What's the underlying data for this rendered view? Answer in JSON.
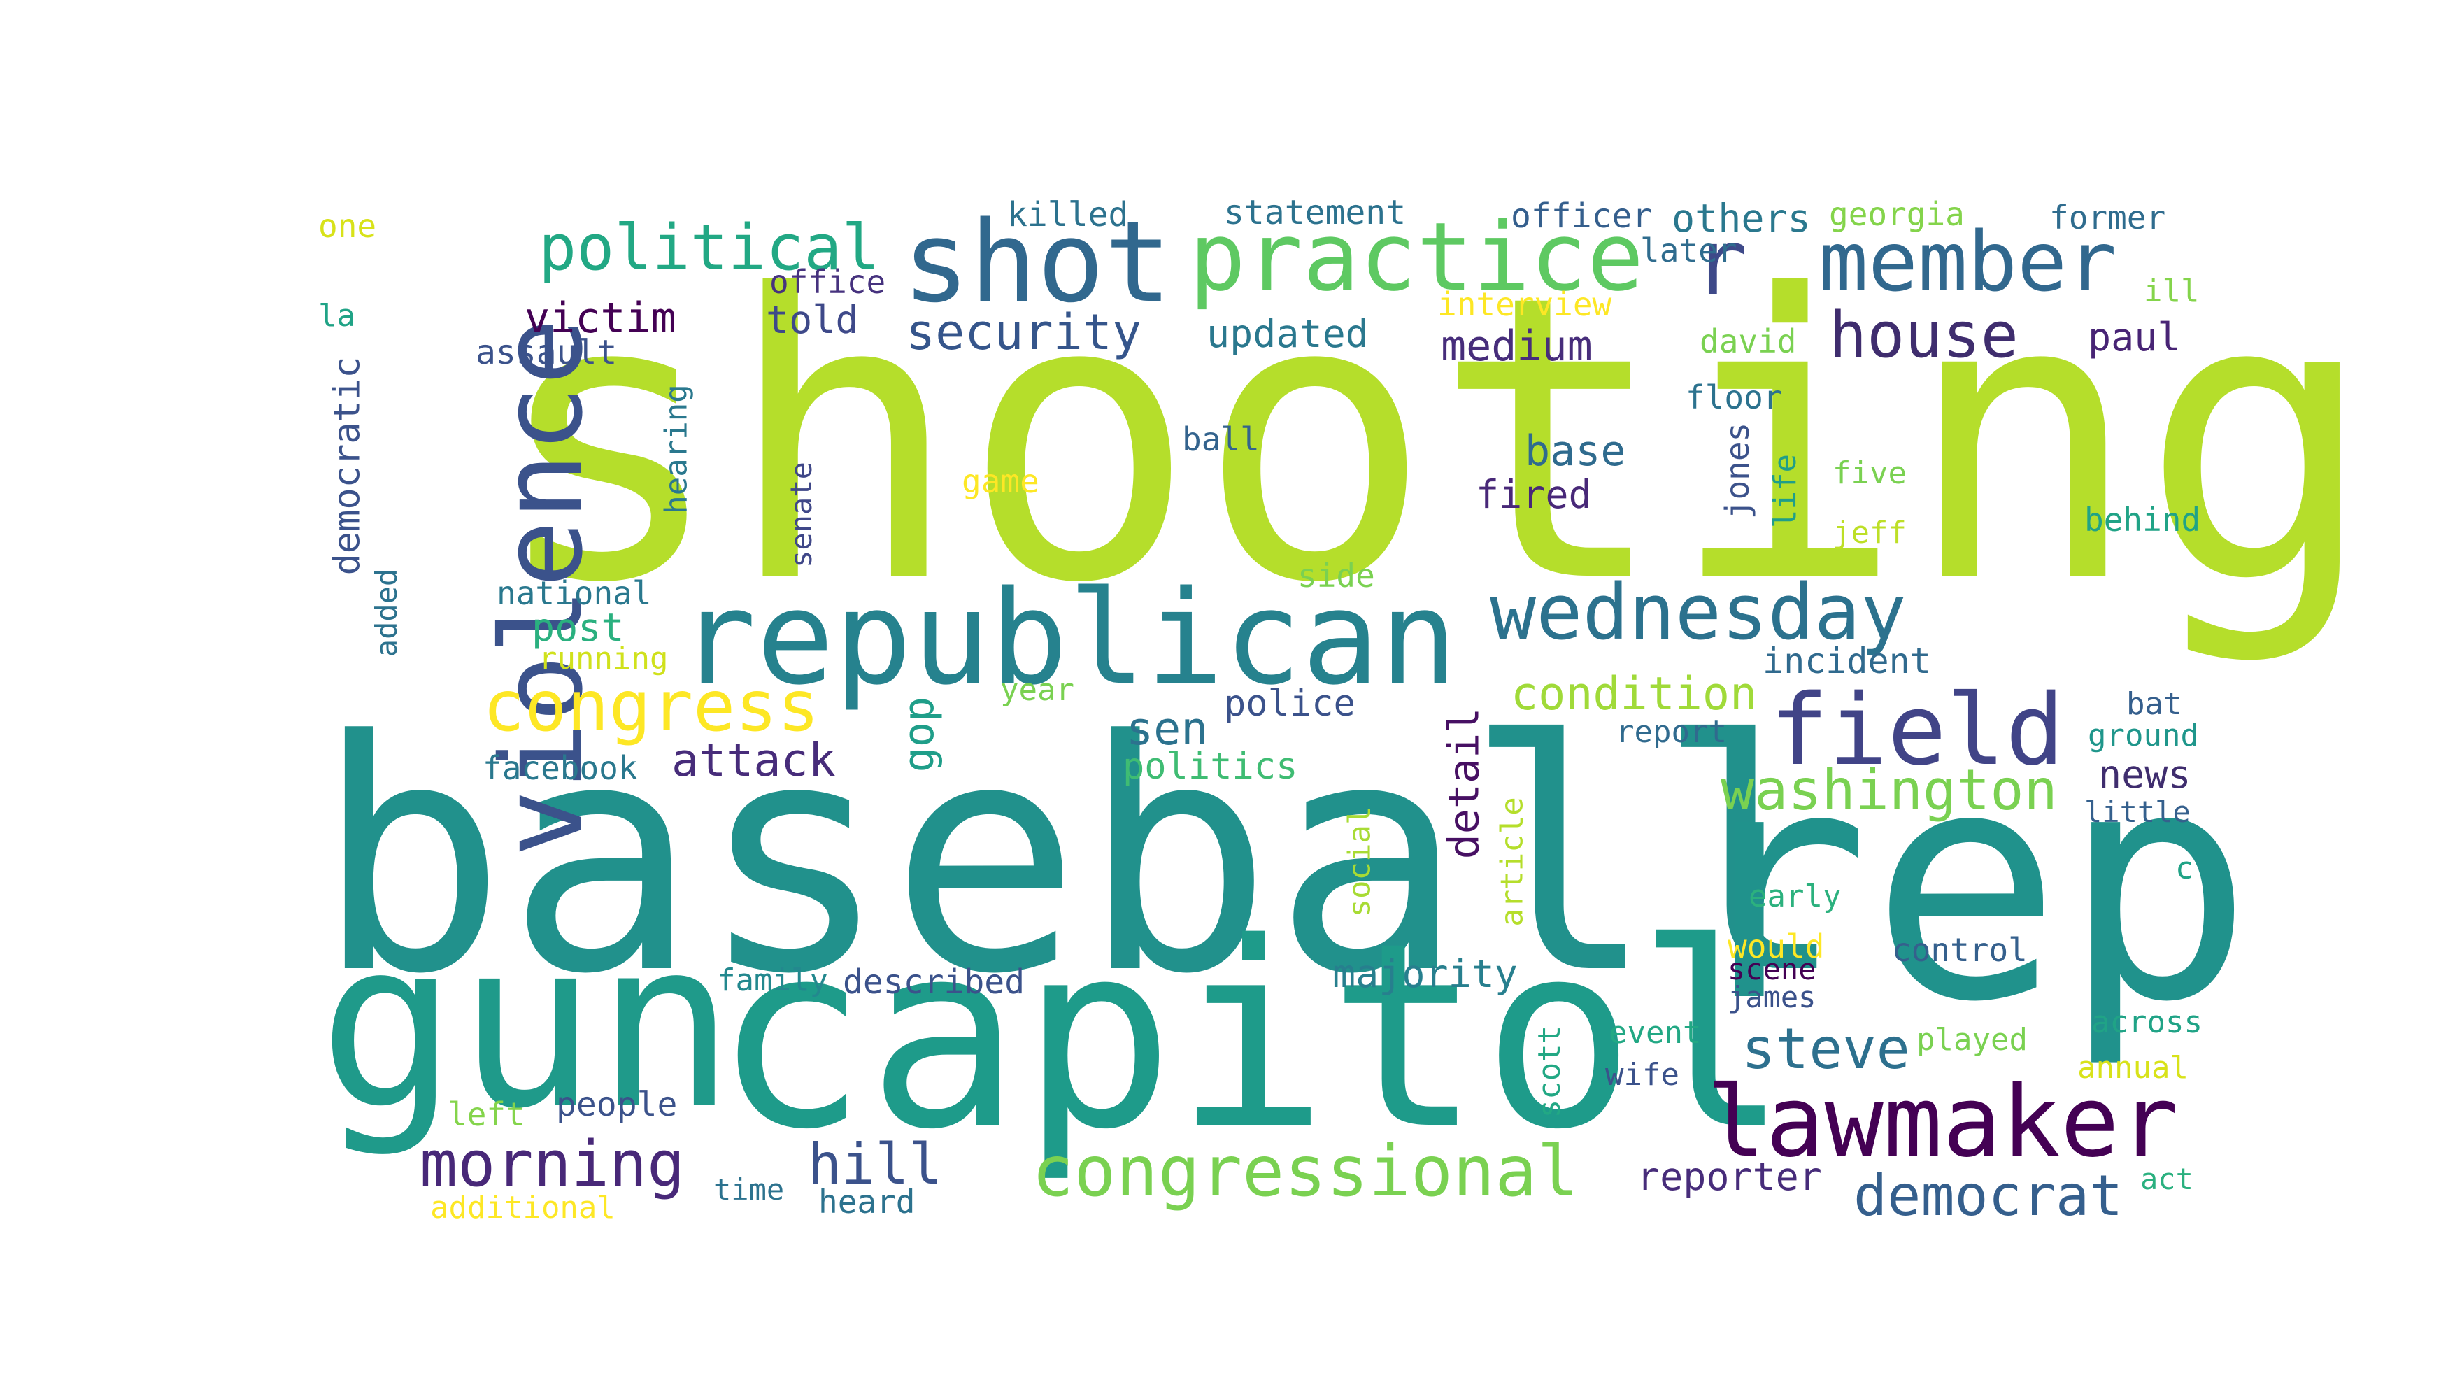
{
  "words": [
    {
      "text": "shooting",
      "color": "#b5de2b"
    },
    {
      "text": "baseball",
      "color": "#21918c"
    },
    {
      "text": "rep",
      "color": "#20928c"
    },
    {
      "text": "gun",
      "color": "#1f9a8a"
    },
    {
      "text": "capitol",
      "color": "#1e9b8a"
    },
    {
      "text": "republican",
      "color": "#26828e"
    },
    {
      "text": "violence",
      "color": "#3b528b"
    },
    {
      "text": "shot",
      "color": "#31688e"
    },
    {
      "text": "practice",
      "color": "#5ec962"
    },
    {
      "text": "r",
      "color": "#3e4989"
    },
    {
      "text": "member",
      "color": "#31688e"
    },
    {
      "text": "field",
      "color": "#414487"
    },
    {
      "text": "lawmaker",
      "color": "#440154"
    },
    {
      "text": "wednesday",
      "color": "#2c728e"
    },
    {
      "text": "congressional",
      "color": "#7ad151"
    },
    {
      "text": "congress",
      "color": "#fde725"
    },
    {
      "text": "political",
      "color": "#22a884"
    },
    {
      "text": "house",
      "color": "#3f2d6e"
    },
    {
      "text": "washington",
      "color": "#7ad151"
    },
    {
      "text": "morning",
      "color": "#482878"
    },
    {
      "text": "security",
      "color": "#35558b"
    },
    {
      "text": "hill",
      "color": "#3b528b"
    },
    {
      "text": "democrat",
      "color": "#355f8d"
    },
    {
      "text": "steve",
      "color": "#2d708e"
    },
    {
      "text": "condition",
      "color": "#a0da39"
    },
    {
      "text": "victim",
      "color": "#440154"
    },
    {
      "text": "medium",
      "color": "#472d7b"
    },
    {
      "text": "base",
      "color": "#2f6b8e"
    },
    {
      "text": "fired",
      "color": "#482878"
    },
    {
      "text": "sen",
      "color": "#2c728e"
    },
    {
      "text": "attack",
      "color": "#472c7a"
    },
    {
      "text": "gop",
      "color": "#1f9e89"
    },
    {
      "text": "detail",
      "color": "#471063"
    },
    {
      "text": "majority",
      "color": "#277f8e"
    },
    {
      "text": "news",
      "color": "#3f2d6e"
    },
    {
      "text": "paul",
      "color": "#482475"
    },
    {
      "text": "others",
      "color": "#2a788e"
    },
    {
      "text": "post",
      "color": "#2ab07f"
    },
    {
      "text": "told",
      "color": "#3e4989"
    },
    {
      "text": "updated",
      "color": "#2a788e"
    },
    {
      "text": "democratic",
      "color": "#3b528b"
    },
    {
      "text": "reporter",
      "color": "#472c7a"
    },
    {
      "text": "police",
      "color": "#3b528b"
    },
    {
      "text": "politics",
      "color": "#3fbc73"
    },
    {
      "text": "incident",
      "color": "#306a8e"
    },
    {
      "text": "statement",
      "color": "#2c728e"
    },
    {
      "text": "officer",
      "color": "#355f8d"
    },
    {
      "text": "killed",
      "color": "#2c728e"
    },
    {
      "text": "georgia",
      "color": "#84d44b"
    },
    {
      "text": "former",
      "color": "#2f6c8e"
    },
    {
      "text": "interview",
      "color": "#fde725"
    },
    {
      "text": "office",
      "color": "#46327e"
    },
    {
      "text": "later",
      "color": "#2f6c8e"
    },
    {
      "text": "assault",
      "color": "#3b528b"
    },
    {
      "text": "david",
      "color": "#7ad151"
    },
    {
      "text": "floor",
      "color": "#2c728e"
    },
    {
      "text": "ball",
      "color": "#33638d"
    },
    {
      "text": "jones",
      "color": "#3b528b"
    },
    {
      "text": "life",
      "color": "#1f9e89"
    },
    {
      "text": "five",
      "color": "#7ad151"
    },
    {
      "text": "jeff",
      "color": "#bddf26"
    },
    {
      "text": "behind",
      "color": "#20a386"
    },
    {
      "text": "hearing",
      "color": "#2a788e"
    },
    {
      "text": "senate",
      "color": "#3f4788"
    },
    {
      "text": "game",
      "color": "#fde725"
    },
    {
      "text": "national",
      "color": "#2a788e"
    },
    {
      "text": "added",
      "color": "#2c728e"
    },
    {
      "text": "running",
      "color": "#d0e11c"
    },
    {
      "text": "side",
      "color": "#7ad151"
    },
    {
      "text": "year",
      "color": "#7ad151"
    },
    {
      "text": "report",
      "color": "#306a8e"
    },
    {
      "text": "bat",
      "color": "#355f8d"
    },
    {
      "text": "ground",
      "color": "#1f968b"
    },
    {
      "text": "little",
      "color": "#35608d"
    },
    {
      "text": "facebook",
      "color": "#2a788e"
    },
    {
      "text": "social",
      "color": "#a8db34"
    },
    {
      "text": "article",
      "color": "#b5de2b"
    },
    {
      "text": "early",
      "color": "#2cb17e"
    },
    {
      "text": "c",
      "color": "#20a386"
    },
    {
      "text": "would",
      "color": "#fde725"
    },
    {
      "text": "control",
      "color": "#35608d"
    },
    {
      "text": "james",
      "color": "#3b528b"
    },
    {
      "text": "scene",
      "color": "#440154"
    },
    {
      "text": "family",
      "color": "#23888e"
    },
    {
      "text": "described",
      "color": "#3b528b"
    },
    {
      "text": "scott",
      "color": "#22a884"
    },
    {
      "text": "event",
      "color": "#22a884"
    },
    {
      "text": "played",
      "color": "#7ad151"
    },
    {
      "text": "across",
      "color": "#20a386"
    },
    {
      "text": "wife",
      "color": "#3b528b"
    },
    {
      "text": "annual",
      "color": "#d8e219"
    },
    {
      "text": "left",
      "color": "#84d44b"
    },
    {
      "text": "people",
      "color": "#3b528b"
    },
    {
      "text": "time",
      "color": "#2c728e"
    },
    {
      "text": "heard",
      "color": "#2c728e"
    },
    {
      "text": "additional",
      "color": "#fde725"
    },
    {
      "text": "act",
      "color": "#2ab07f"
    },
    {
      "text": "one",
      "color": "#d8e219"
    },
    {
      "text": "la",
      "color": "#20a386"
    },
    {
      "text": "ill",
      "color": "#84d44b"
    }
  ]
}
